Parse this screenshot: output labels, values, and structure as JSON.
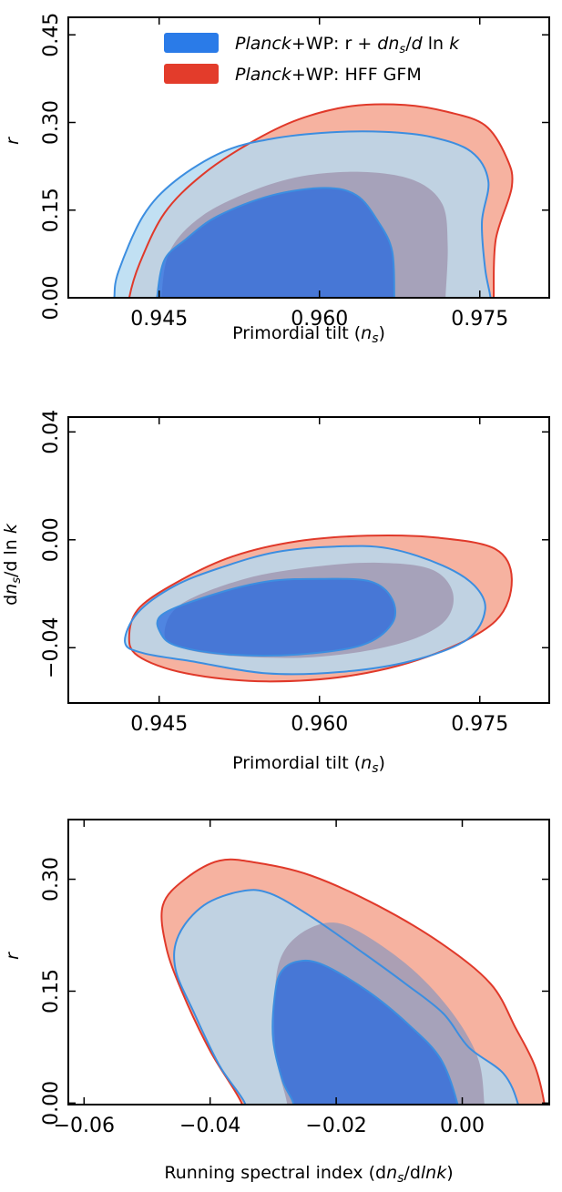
{
  "colors": {
    "blue_outer": "#b3d9f0",
    "blue_inner": "#2266e0",
    "blue_line": "#3c8ee0",
    "red_outer": "#f6b2a0",
    "red_inner": "#a39cb6",
    "red_line": "#e0392a",
    "overlap_outer": "#a9c8dc",
    "overlap_inner": "#3f58b0"
  },
  "chart_data": [
    {
      "type": "contour",
      "xlabel": "Primordial tilt (n_s)",
      "ylabel": "r",
      "xlim": [
        0.9365,
        0.9815
      ],
      "ylim": [
        0.0,
        0.48
      ],
      "xticks": [
        0.945,
        0.96,
        0.975
      ],
      "xtick_labels": [
        "0.945",
        "0.960",
        "0.975"
      ],
      "yticks": [
        0.0,
        0.15,
        0.3,
        0.45
      ],
      "ytick_labels": [
        "0.00",
        "0.15",
        "0.30",
        "0.45"
      ],
      "legend": {
        "position": "top-right",
        "entries": [
          {
            "label_italic": "Planck",
            "label_rest": "+WP: r + dnₛ/d ln k",
            "color": "#2a7be8"
          },
          {
            "label_italic": "Planck",
            "label_rest": "+WP: HFF GFM",
            "color": "#e33c2b"
          }
        ]
      },
      "series": [
        {
          "name": "Planck+WP: r + dn_s/d ln k",
          "outer": [
            [
              0.9408,
              0.0
            ],
            [
              0.9412,
              0.045
            ],
            [
              0.9435,
              0.14
            ],
            [
              0.9465,
              0.2
            ],
            [
              0.951,
              0.25
            ],
            [
              0.9555,
              0.272
            ],
            [
              0.961,
              0.283
            ],
            [
              0.966,
              0.284
            ],
            [
              0.9705,
              0.275
            ],
            [
              0.9742,
              0.25
            ],
            [
              0.9758,
              0.2
            ],
            [
              0.9752,
              0.13
            ],
            [
              0.9755,
              0.05
            ],
            [
              0.976,
              0.0
            ]
          ],
          "inner": [
            [
              0.9448,
              0.0
            ],
            [
              0.9455,
              0.065
            ],
            [
              0.9475,
              0.1
            ],
            [
              0.9505,
              0.14
            ],
            [
              0.9555,
              0.175
            ],
            [
              0.9605,
              0.188
            ],
            [
              0.9635,
              0.175
            ],
            [
              0.9655,
              0.13
            ],
            [
              0.9668,
              0.08
            ],
            [
              0.967,
              0.0
            ]
          ]
        },
        {
          "name": "Planck+WP: HFF GFM",
          "outer": [
            [
              0.9422,
              0.0
            ],
            [
              0.9432,
              0.06
            ],
            [
              0.9455,
              0.145
            ],
            [
              0.949,
              0.21
            ],
            [
              0.9535,
              0.265
            ],
            [
              0.958,
              0.305
            ],
            [
              0.963,
              0.328
            ],
            [
              0.968,
              0.33
            ],
            [
              0.972,
              0.318
            ],
            [
              0.9755,
              0.295
            ],
            [
              0.9775,
              0.24
            ],
            [
              0.978,
              0.19
            ],
            [
              0.9765,
              0.1
            ],
            [
              0.9763,
              0.0
            ]
          ],
          "inner": [
            [
              0.9452,
              0.0
            ],
            [
              0.946,
              0.08
            ],
            [
              0.949,
              0.14
            ],
            [
              0.954,
              0.185
            ],
            [
              0.959,
              0.21
            ],
            [
              0.9645,
              0.215
            ],
            [
              0.969,
              0.2
            ],
            [
              0.9715,
              0.16
            ],
            [
              0.972,
              0.09
            ],
            [
              0.9718,
              0.0
            ]
          ]
        }
      ]
    },
    {
      "type": "contour",
      "xlabel": "Primordial tilt (n_s)",
      "ylabel": "dn_s/d ln k",
      "xlim": [
        0.9365,
        0.9815
      ],
      "ylim": [
        -0.0605,
        0.0455
      ],
      "xticks": [
        0.945,
        0.96,
        0.975
      ],
      "xtick_labels": [
        "0.945",
        "0.960",
        "0.975"
      ],
      "yticks": [
        -0.04,
        0.0,
        0.04
      ],
      "ytick_labels": [
        "−0.04",
        "0.00",
        "0.04"
      ],
      "series": [
        {
          "name": "Planck+WP: r + dn_s/d ln k",
          "outer": [
            [
              0.9418,
              -0.038
            ],
            [
              0.943,
              -0.027
            ],
            [
              0.9465,
              -0.017
            ],
            [
              0.951,
              -0.01
            ],
            [
              0.956,
              -0.0045
            ],
            [
              0.9615,
              -0.0025
            ],
            [
              0.9665,
              -0.0032
            ],
            [
              0.9715,
              -0.0095
            ],
            [
              0.9745,
              -0.017
            ],
            [
              0.9755,
              -0.026
            ],
            [
              0.9738,
              -0.037
            ],
            [
              0.9685,
              -0.045
            ],
            [
              0.962,
              -0.049
            ],
            [
              0.955,
              -0.0495
            ],
            [
              0.948,
              -0.045
            ],
            [
              0.9435,
              -0.042
            ]
          ],
          "inner": [
            [
              0.9452,
              -0.035
            ],
            [
              0.9452,
              -0.028
            ],
            [
              0.9495,
              -0.021
            ],
            [
              0.955,
              -0.0155
            ],
            [
              0.9605,
              -0.0145
            ],
            [
              0.9648,
              -0.0155
            ],
            [
              0.9668,
              -0.022
            ],
            [
              0.9668,
              -0.031
            ],
            [
              0.964,
              -0.039
            ],
            [
              0.958,
              -0.0425
            ],
            [
              0.9515,
              -0.0425
            ],
            [
              0.9468,
              -0.0395
            ]
          ]
        },
        {
          "name": "Planck+WP: HFF GFM",
          "outer": [
            [
              0.9422,
              -0.035
            ],
            [
              0.9432,
              -0.025
            ],
            [
              0.947,
              -0.015
            ],
            [
              0.952,
              -0.006
            ],
            [
              0.958,
              -0.0005
            ],
            [
              0.9645,
              0.0015
            ],
            [
              0.971,
              0.0008
            ],
            [
              0.9765,
              -0.0035
            ],
            [
              0.978,
              -0.015
            ],
            [
              0.9765,
              -0.03
            ],
            [
              0.971,
              -0.042
            ],
            [
              0.9635,
              -0.05
            ],
            [
              0.955,
              -0.0525
            ],
            [
              0.9475,
              -0.0495
            ],
            [
              0.943,
              -0.043
            ]
          ],
          "inner": [
            [
              0.9455,
              -0.035
            ],
            [
              0.947,
              -0.024
            ],
            [
              0.953,
              -0.0145
            ],
            [
              0.9595,
              -0.01
            ],
            [
              0.9655,
              -0.0085
            ],
            [
              0.9705,
              -0.011
            ],
            [
              0.9725,
              -0.02
            ],
            [
              0.9715,
              -0.031
            ],
            [
              0.967,
              -0.039
            ],
            [
              0.9595,
              -0.0435
            ],
            [
              0.9515,
              -0.043
            ],
            [
              0.947,
              -0.04
            ]
          ]
        }
      ]
    },
    {
      "type": "contour",
      "xlabel": "Running spectral index (dn_s/dlnk)",
      "ylabel": "r",
      "xlim": [
        -0.0625,
        0.0138
      ],
      "ylim": [
        -0.002,
        0.38
      ],
      "xticks": [
        -0.06,
        -0.04,
        -0.02,
        0.0
      ],
      "xtick_labels": [
        "−0.06",
        "−0.04",
        "−0.02",
        "0.00"
      ],
      "yticks": [
        0.0,
        0.15,
        0.3
      ],
      "ytick_labels": [
        "0.00",
        "0.15",
        "0.30"
      ],
      "series": [
        {
          "name": "Planck+WP: r + dn_s/d ln k",
          "outer": [
            [
              -0.0345,
              0.0
            ],
            [
              -0.0385,
              0.05
            ],
            [
              -0.0425,
              0.12
            ],
            [
              -0.0455,
              0.18
            ],
            [
              -0.045,
              0.225
            ],
            [
              -0.041,
              0.265
            ],
            [
              -0.035,
              0.284
            ],
            [
              -0.0305,
              0.281
            ],
            [
              -0.024,
              0.25
            ],
            [
              -0.0155,
              0.2
            ],
            [
              -0.009,
              0.16
            ],
            [
              -0.003,
              0.12
            ],
            [
              0.001,
              0.075
            ],
            [
              0.0065,
              0.04
            ],
            [
              0.0088,
              0.0
            ]
          ],
          "inner": [
            [
              -0.0268,
              0.0
            ],
            [
              -0.0285,
              0.03
            ],
            [
              -0.03,
              0.085
            ],
            [
              -0.0298,
              0.14
            ],
            [
              -0.0288,
              0.175
            ],
            [
              -0.026,
              0.19
            ],
            [
              -0.022,
              0.185
            ],
            [
              -0.015,
              0.15
            ],
            [
              -0.0085,
              0.105
            ],
            [
              -0.0035,
              0.06
            ],
            [
              -0.0008,
              0.0
            ]
          ]
        },
        {
          "name": "Planck+WP: HFF GFM",
          "outer": [
            [
              -0.035,
              0.0
            ],
            [
              -0.04,
              0.07
            ],
            [
              -0.0445,
              0.15
            ],
            [
              -0.047,
              0.21
            ],
            [
              -0.0475,
              0.265
            ],
            [
              -0.044,
              0.3
            ],
            [
              -0.0385,
              0.325
            ],
            [
              -0.0325,
              0.322
            ],
            [
              -0.024,
              0.305
            ],
            [
              -0.0135,
              0.265
            ],
            [
              -0.0035,
              0.215
            ],
            [
              0.0045,
              0.16
            ],
            [
              0.0085,
              0.1
            ],
            [
              0.0115,
              0.05
            ],
            [
              0.013,
              0.0
            ]
          ],
          "inner": [
            [
              -0.0278,
              0.0
            ],
            [
              -0.0295,
              0.06
            ],
            [
              -0.0298,
              0.13
            ],
            [
              -0.029,
              0.19
            ],
            [
              -0.026,
              0.225
            ],
            [
              -0.021,
              0.242
            ],
            [
              -0.016,
              0.228
            ],
            [
              -0.008,
              0.18
            ],
            [
              -0.0015,
              0.12
            ],
            [
              0.0025,
              0.06
            ],
            [
              0.0035,
              0.0
            ]
          ]
        }
      ]
    }
  ]
}
